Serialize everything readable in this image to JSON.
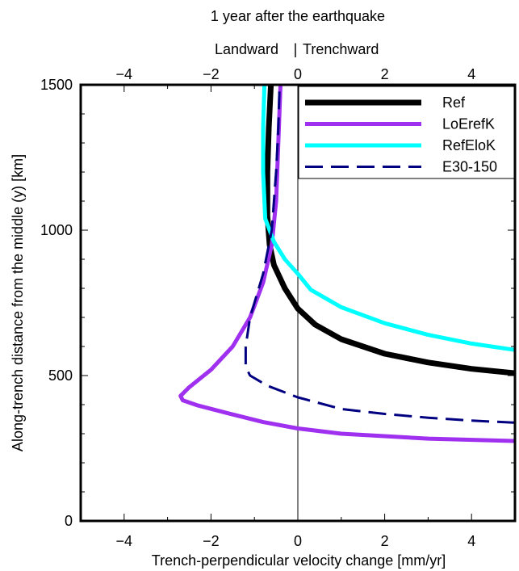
{
  "chart_data": {
    "type": "line",
    "title": "1 year after the earthquake",
    "top_labels": {
      "left": "Landward",
      "divider": "|",
      "right": "Trenchward"
    },
    "xlabel": "Trench-perpendicular velocity change [mm/yr]",
    "ylabel": "Along-trench distance from the middle (y) [km]",
    "xlim": [
      -5,
      5
    ],
    "ylim": [
      0,
      1500
    ],
    "x_ticks": [
      -4,
      -2,
      0,
      2,
      4
    ],
    "y_ticks": [
      0,
      500,
      1000,
      1500
    ],
    "x_tick_labels": [
      "−4",
      "−2",
      "0",
      "2",
      "4"
    ],
    "y_tick_labels": [
      "0",
      "500",
      "1000",
      "1500"
    ],
    "legend_position": "top-right",
    "series": [
      {
        "name": "Ref",
        "color": "#000000",
        "dash": "solid",
        "stroke": 7,
        "x": [
          5.0,
          4.0,
          3.0,
          2.0,
          1.0,
          0.4,
          0.0,
          -0.3,
          -0.55,
          -0.65,
          -0.7,
          -0.7,
          -0.67,
          -0.62
        ],
        "y": [
          508,
          523,
          545,
          575,
          625,
          675,
          730,
          800,
          880,
          950,
          1050,
          1200,
          1350,
          1500
        ]
      },
      {
        "name": "LoErefK",
        "color": "#a030f0",
        "dash": "solid",
        "stroke": 5,
        "x": [
          5.0,
          3.0,
          1.0,
          0.0,
          -0.8,
          -1.6,
          -2.3,
          -2.65,
          -2.7,
          -2.5,
          -2.0,
          -1.5,
          -1.1,
          -0.8,
          -0.6,
          -0.5,
          -0.45,
          -0.4
        ],
        "y": [
          275,
          283,
          300,
          318,
          340,
          370,
          397,
          415,
          430,
          460,
          520,
          600,
          700,
          820,
          950,
          1100,
          1300,
          1500
        ]
      },
      {
        "name": "RefEloK",
        "color": "#00ffff",
        "dash": "solid",
        "stroke": 5,
        "x": [
          5.0,
          4.0,
          3.0,
          2.0,
          1.0,
          0.3,
          0.0,
          -0.3,
          -0.55,
          -0.75,
          -0.8,
          -0.8,
          -0.77
        ],
        "y": [
          588,
          610,
          640,
          680,
          735,
          795,
          850,
          900,
          960,
          1040,
          1200,
          1350,
          1500
        ]
      },
      {
        "name": "E30-150",
        "color": "#000080",
        "dash": "dashed",
        "stroke": 3,
        "x": [
          5.0,
          4.0,
          3.0,
          2.0,
          1.0,
          0.0,
          -0.7,
          -1.1,
          -1.2,
          -1.2,
          -1.1,
          -0.8,
          -0.6,
          -0.5,
          -0.45,
          -0.42
        ],
        "y": [
          338,
          345,
          355,
          368,
          385,
          425,
          465,
          500,
          530,
          600,
          700,
          850,
          1000,
          1200,
          1350,
          1500
        ]
      }
    ]
  }
}
